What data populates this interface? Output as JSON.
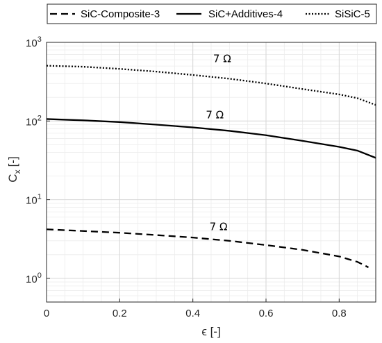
{
  "chart_data": {
    "type": "line",
    "xlabel": "ϵ [-]",
    "ylabel_main": "C",
    "ylabel_sub": "x",
    "ylabel_unit": "[-]",
    "xlim": [
      0,
      0.9
    ],
    "ylim": [
      0.5,
      1000
    ],
    "yscale": "log",
    "grid": true,
    "legend_placement": "top",
    "x_ticks": [
      0,
      0.2,
      0.4,
      0.6,
      0.8
    ],
    "x_tick_labels": [
      "0",
      "0.2",
      "0.4",
      "0.6",
      "0.8"
    ],
    "y_ticks": [
      1,
      10,
      100,
      1000
    ],
    "y_tick_base": "10",
    "y_tick_exponents": [
      "0",
      "1",
      "2",
      "3"
    ],
    "series": [
      {
        "name": "SiC-Composite-3",
        "style": "dashed",
        "color": "#000000",
        "x": [
          0,
          0.1,
          0.2,
          0.3,
          0.4,
          0.5,
          0.6,
          0.7,
          0.8,
          0.85,
          0.88
        ],
        "y": [
          4.2,
          4.0,
          3.8,
          3.55,
          3.3,
          3.0,
          2.65,
          2.3,
          1.9,
          1.62,
          1.38
        ]
      },
      {
        "name": "SiC+Additives-4",
        "style": "solid",
        "color": "#000000",
        "x": [
          0,
          0.1,
          0.2,
          0.3,
          0.4,
          0.5,
          0.6,
          0.7,
          0.8,
          0.85,
          0.9
        ],
        "y": [
          106,
          102,
          97,
          90,
          83,
          75,
          66,
          56,
          47,
          42,
          34
        ]
      },
      {
        "name": "SiSiC-5",
        "style": "dotted",
        "color": "#000000",
        "x": [
          0,
          0.1,
          0.2,
          0.3,
          0.4,
          0.5,
          0.6,
          0.7,
          0.8,
          0.85,
          0.9
        ],
        "y": [
          505,
          490,
          460,
          425,
          385,
          345,
          300,
          255,
          218,
          195,
          160
        ]
      }
    ],
    "annotations": [
      {
        "text": "7 Ω",
        "x": 0.48,
        "y": 560
      },
      {
        "text": "7 Ω",
        "x": 0.46,
        "y": 108
      },
      {
        "text": "7 Ω",
        "x": 0.47,
        "y": 4.1
      }
    ]
  }
}
